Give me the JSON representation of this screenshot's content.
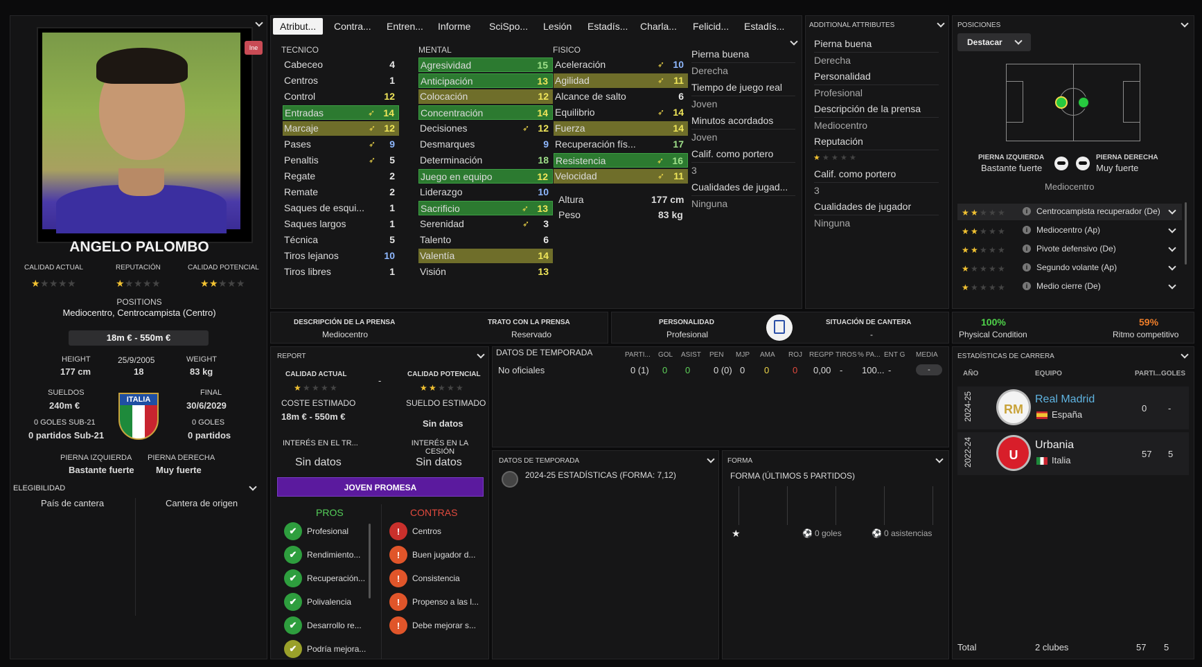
{
  "player": {
    "name": "ANGELO PALOMBO",
    "badge": "Ine",
    "positions_label": "POSITIONS",
    "positions": "Mediocentro, Centrocampista (Centro)",
    "value": "18m € - 550m €",
    "ca_label": "CALIDAD ACTUAL",
    "rep_label": "REPUTACIÓN",
    "pa_label": "CALIDAD POTENCIAL",
    "height_label": "HEIGHT",
    "height": "177 cm",
    "dob": "25/9/2005",
    "age": "18",
    "weight_label": "WEIGHT",
    "weight": "83 kg",
    "wages_label": "SUELDOS",
    "wages": "240m €",
    "contract_label": "FINAL",
    "contract": "30/6/2029",
    "u21_goals": "0 GOLES SUB-21",
    "u21_apps": "0 partidos Sub-21",
    "goals": "0 GOLES",
    "apps": "0 partidos",
    "nation": "ITALIA",
    "left_foot_label": "PIERNA IZQUIERDA",
    "left_foot": "Bastante fuerte",
    "right_foot_label": "PIERNA DERECHA",
    "right_foot": "Muy fuerte",
    "eligibility": "ELEGIBILIDAD",
    "elig_a": "País de cantera",
    "elig_b": "Cantera de origen"
  },
  "tabs": [
    "Atribut...",
    "Contra...",
    "Entren...",
    "Informe",
    "SciSpo...",
    "Lesión",
    "Estadís...",
    "Charla...",
    "Felicid...",
    "Estadís..."
  ],
  "attributes": {
    "tecnico_label": "TECNICO",
    "mental_label": "MENTAL",
    "fisico_label": "FISICO",
    "tecnico": [
      [
        "Cabeceo",
        "4"
      ],
      [
        "Centros",
        "1"
      ],
      [
        "Control",
        "12"
      ],
      [
        "Entradas",
        "14"
      ],
      [
        "Marcaje",
        "12"
      ],
      [
        "Pases",
        "9"
      ],
      [
        "Penaltis",
        "5"
      ],
      [
        "Regate",
        "2"
      ],
      [
        "Remate",
        "2"
      ],
      [
        "Saques de esqui...",
        "1"
      ],
      [
        "Saques largos",
        "1"
      ],
      [
        "Técnica",
        "5"
      ],
      [
        "Tiros lejanos",
        "10"
      ],
      [
        "Tiros libres",
        "1"
      ]
    ],
    "mental": [
      [
        "Agresividad",
        "15"
      ],
      [
        "Anticipación",
        "13"
      ],
      [
        "Colocación",
        "12"
      ],
      [
        "Concentración",
        "14"
      ],
      [
        "Decisiones",
        "12"
      ],
      [
        "Desmarques",
        "9"
      ],
      [
        "Determinación",
        "18"
      ],
      [
        "Juego en equipo",
        "12"
      ],
      [
        "Liderazgo",
        "10"
      ],
      [
        "Sacrificio",
        "13"
      ],
      [
        "Serenidad",
        "3"
      ],
      [
        "Talento",
        "6"
      ],
      [
        "Valentía",
        "14"
      ],
      [
        "Visión",
        "13"
      ]
    ],
    "fisico": [
      [
        "Aceleración",
        "10"
      ],
      [
        "Agilidad",
        "11"
      ],
      [
        "Alcance de salto",
        "6"
      ],
      [
        "Equilibrio",
        "14"
      ],
      [
        "Fuerza",
        "14"
      ],
      [
        "Recuperación fís...",
        "17"
      ],
      [
        "Resistencia",
        "16"
      ],
      [
        "Velocidad",
        "11"
      ]
    ],
    "height_label": "Altura",
    "height": "177 cm",
    "weight_label": "Peso",
    "weight": "83 kg"
  },
  "side_info": [
    [
      "Pierna buena",
      "Derecha"
    ],
    [
      "Tiempo de juego real",
      "Joven"
    ],
    [
      "Minutos acordados",
      "Joven"
    ],
    [
      "Calif. como portero",
      "3"
    ],
    [
      "Cualidades de jugad...",
      "Ninguna"
    ]
  ],
  "additional": {
    "title": "ADDITIONAL ATTRIBUTES",
    "items": [
      [
        "Pierna buena",
        "Derecha"
      ],
      [
        "Personalidad",
        "Profesional"
      ],
      [
        "Descripción de la prensa",
        "Mediocentro"
      ],
      [
        "Reputación",
        ""
      ],
      [
        "Calif. como portero",
        "3"
      ],
      [
        "Cualidades de jugador",
        "Ninguna"
      ]
    ]
  },
  "posiciones": {
    "title": "POSICIONES",
    "dropdown": "Destacar",
    "left_label": "PIERNA IZQUIERDA",
    "left_value": "Bastante fuerte",
    "right_label": "PIERNA DERECHA",
    "right_value": "Muy fuerte",
    "role": "Mediocentro",
    "roles": [
      [
        "Centrocampista recuperador (De)",
        1.5
      ],
      [
        "Mediocentro (Ap)",
        1.5
      ],
      [
        "Pivote defensivo (De)",
        1.5
      ],
      [
        "Segundo volante (Ap)",
        1
      ],
      [
        "Medio cierre (De)",
        1
      ]
    ]
  },
  "press": {
    "desc_label": "DESCRIPCIÓN DE LA PRENSA",
    "desc": "Mediocentro",
    "trato_label": "TRATO CON LA PRENSA",
    "trato": "Reservado",
    "pers_label": "PERSONALIDAD",
    "pers": "Profesional",
    "cantera_label": "SITUACIÓN DE CANTERA",
    "cantera": "-"
  },
  "condition": {
    "physical": "100%",
    "physical_label": "Physical Condition",
    "ritmo": "59%",
    "ritmo_label": "Ritmo competitivo"
  },
  "report": {
    "title": "REPORT",
    "ca_label": "CALIDAD ACTUAL",
    "pa_label": "CALIDAD POTENCIAL",
    "dash": "-",
    "coste_label": "COSTE ESTIMADO",
    "coste": "18m € - 550m €",
    "sueldo_label": "SUELDO ESTIMADO",
    "sueldo": "Sin datos",
    "int_tr_label": "INTERÉS EN EL TR...",
    "int_tr": "Sin datos",
    "int_ces_label": "INTERÉS EN LA CESIÓN",
    "int_ces": "Sin datos",
    "banner": "JOVEN PROMESA",
    "pros_label": "PROS",
    "contras_label": "CONTRAS",
    "pros": [
      "Profesional",
      "Rendimiento...",
      "Recuperación...",
      "Polivalencia",
      "Desarrollo re...",
      "Podría mejora..."
    ],
    "contras": [
      "Centros",
      "Buen jugador d...",
      "Consistencia",
      "Propenso a las l...",
      "Debe mejorar s..."
    ]
  },
  "season": {
    "title": "DATOS DE TEMPORADA",
    "headers": [
      "PARTI...",
      "GOL",
      "ASIST",
      "PEN",
      "MJP",
      "AMA",
      "ROJ",
      "REGPP",
      "TIROS",
      "% PA...",
      "ENT G",
      "MEDIA"
    ],
    "row_label": "No oficiales",
    "row": [
      "0 (1)",
      "0",
      "0",
      "0 (0)",
      "0",
      "0",
      "0",
      "0,00",
      "-",
      "100...",
      "-",
      "-"
    ]
  },
  "season2": {
    "title": "DATOS DE TEMPORADA",
    "text": "2024-25 ESTADÍSTICAS (FORMA: 7,12)"
  },
  "forma": {
    "title": "FORMA",
    "sub": "FORMA (ÚLTIMOS 5 PARTIDOS)",
    "goals": "0 goles",
    "assists": "0 asistencias"
  },
  "career": {
    "title": "ESTADÍSTICAS DE CARRERA",
    "year_label": "AÑO",
    "team_label": "EQUIPO",
    "apps_label": "PARTI...",
    "goals_label": "GOLES",
    "rows": [
      {
        "year": "2024-25",
        "team": "Real Madrid",
        "country": "España",
        "apps": "0",
        "goals": "-"
      },
      {
        "year": "2022-24",
        "team": "Urbania",
        "country": "Italia",
        "apps": "57",
        "goals": "5"
      }
    ],
    "total_label": "Total",
    "total_clubs": "2 clubes",
    "total_apps": "57",
    "total_goals": "5"
  },
  "colors": {
    "accent_green": "#2c7a30",
    "highlight_yellow": "#6f6e2a",
    "purple": "#5b1a9e",
    "pos_green": "#27c93f"
  }
}
